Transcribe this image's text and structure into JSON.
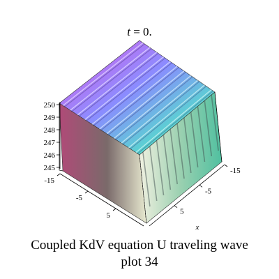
{
  "caption": {
    "line1": "Coupled KdV equation U traveling wave",
    "line2": "plot 34"
  },
  "chart_data": {
    "type": "surface3d",
    "title_var": "t",
    "title_value": "0.",
    "xlabel": "x",
    "ylabel": "",
    "zlabel": "",
    "x_ticks": [
      "-15",
      "-5",
      "5"
    ],
    "y_ticks": [
      "-15",
      "-5",
      "5"
    ],
    "z_ticks": [
      "250",
      "249",
      "248",
      "247",
      "246",
      "245"
    ],
    "z_range": [
      244.5,
      250
    ],
    "x_range": [
      -15,
      15
    ],
    "y_range": [
      -15,
      15
    ],
    "wave_count": 11,
    "surface_colors": [
      "#d050e0",
      "#8080ff",
      "#40e0c0",
      "#ffffff"
    ]
  }
}
